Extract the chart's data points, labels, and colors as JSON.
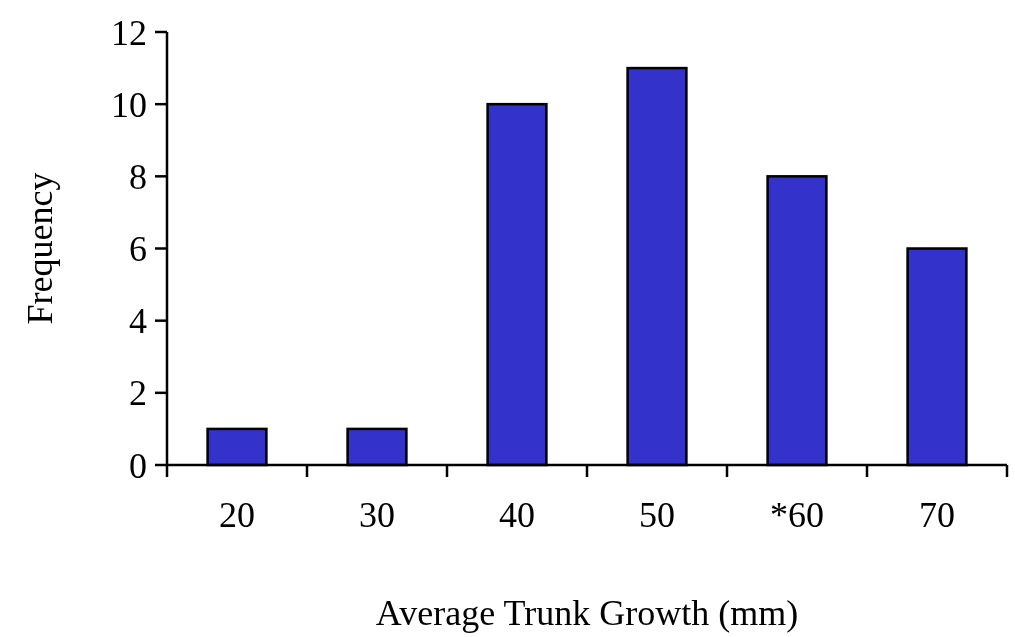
{
  "chart_data": {
    "type": "bar",
    "xlabel": "Average Trunk Growth (mm)",
    "ylabel": "Frequency",
    "categories": [
      "20",
      "30",
      "40",
      "50",
      "*60",
      "70"
    ],
    "values": [
      1,
      1,
      10,
      11,
      8,
      6
    ],
    "color": "#3333cc",
    "ylim": [
      0,
      12
    ],
    "yticks": [
      0,
      2,
      4,
      6,
      8,
      10,
      12
    ],
    "grid": false
  }
}
